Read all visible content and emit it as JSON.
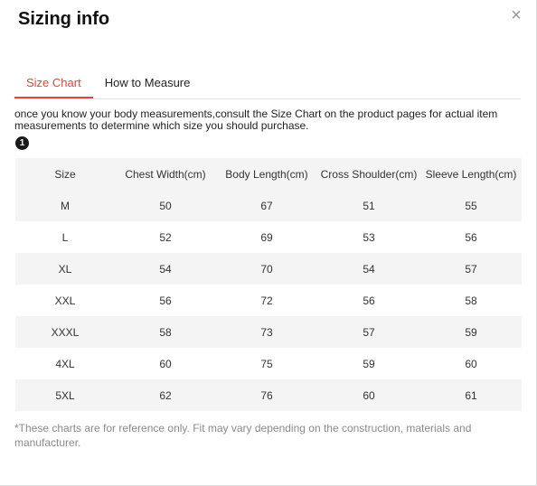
{
  "modal": {
    "title": "Sizing info",
    "close_glyph": "×"
  },
  "tabs": [
    {
      "label": "Size Chart",
      "active": true
    },
    {
      "label": "How to Measure",
      "active": false
    }
  ],
  "intro_text": "once you know your body measurements,consult the Size Chart on the product pages for actual item measurements to determine which size you should purchase.",
  "step_badge": "1",
  "table": {
    "headers": [
      "Size",
      "Chest Width(cm)",
      "Body Length(cm)",
      "Cross Shoulder(cm)",
      "Sleeve Length(cm)"
    ],
    "rows": [
      [
        "M",
        "50",
        "67",
        "51",
        "55"
      ],
      [
        "L",
        "52",
        "69",
        "53",
        "56"
      ],
      [
        "XL",
        "54",
        "70",
        "54",
        "57"
      ],
      [
        "XXL",
        "56",
        "72",
        "56",
        "58"
      ],
      [
        "XXXL",
        "58",
        "73",
        "57",
        "59"
      ],
      [
        "4XL",
        "60",
        "75",
        "59",
        "60"
      ],
      [
        "5XL",
        "62",
        "76",
        "60",
        "61"
      ]
    ]
  },
  "footnote": "*These charts are for reference only. Fit may vary depending on the construction, materials and manufacturer.",
  "colors": {
    "accent": "#e0463d",
    "stripe": "#f4f4f4",
    "muted_text": "#8a8a8a"
  },
  "icons": {
    "close": "close-icon",
    "step": "step-number-icon"
  }
}
